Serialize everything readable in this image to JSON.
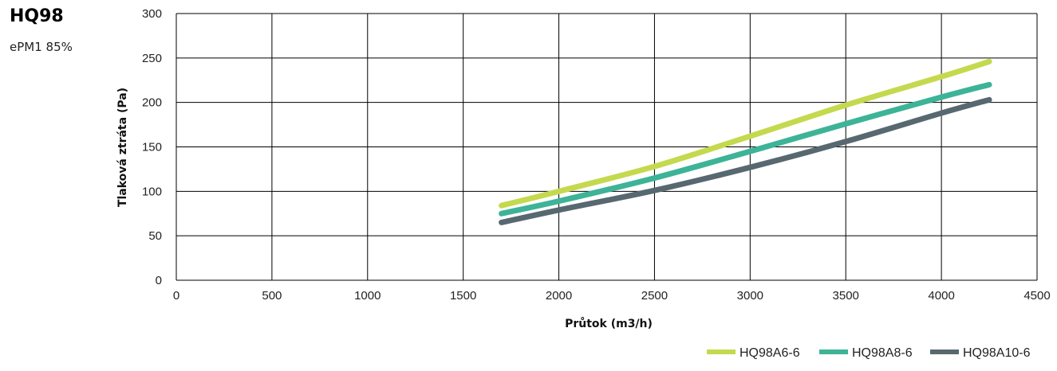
{
  "title": "HQ98",
  "subtitle": "ePM1 85%",
  "chart_data": {
    "type": "line",
    "xlabel": "Průtok (m3/h)",
    "ylabel": "Tlaková ztráta (Pa)",
    "xlim": [
      0,
      4500
    ],
    "ylim": [
      0,
      300
    ],
    "xticks": [
      "0",
      "500",
      "1000",
      "1500",
      "2000",
      "2500",
      "3000",
      "3500",
      "4000",
      "4500"
    ],
    "yticks": [
      "0",
      "50",
      "100",
      "150",
      "200",
      "250",
      "300"
    ],
    "grid": true,
    "legend_position": "bottom-right",
    "series": [
      {
        "name": "HQ98A6-6",
        "color": "#c5d94e",
        "x": [
          1700,
          2000,
          2500,
          3000,
          3500,
          4000,
          4250
        ],
        "y": [
          84,
          100,
          128,
          162,
          197,
          229,
          246
        ]
      },
      {
        "name": "HQ98A8-6",
        "color": "#3db397",
        "x": [
          1700,
          2000,
          2500,
          3000,
          3500,
          4000,
          4250
        ],
        "y": [
          75,
          89,
          115,
          145,
          176,
          206,
          220
        ]
      },
      {
        "name": "HQ98A10-6",
        "color": "#586870",
        "x": [
          1700,
          2000,
          2500,
          3000,
          3500,
          4000,
          4250
        ],
        "y": [
          65,
          79,
          101,
          127,
          156,
          188,
          203
        ]
      }
    ]
  }
}
